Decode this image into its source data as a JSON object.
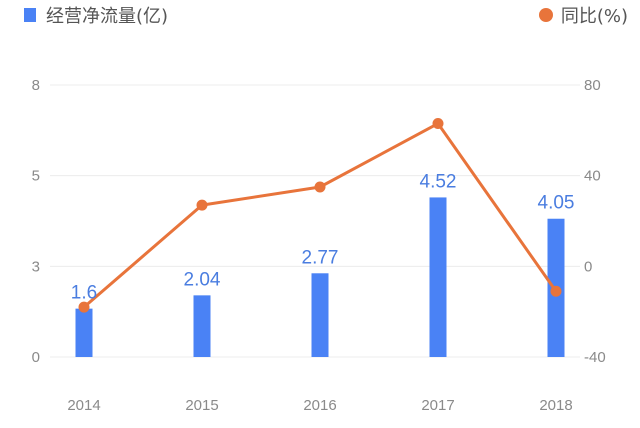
{
  "chart_data": {
    "type": "bar",
    "categories": [
      "2014",
      "2015",
      "2016",
      "2017",
      "2018"
    ],
    "series": [
      {
        "name": "经营净流量(亿)",
        "type": "bar",
        "axis": "left",
        "values": [
          1.6,
          2.04,
          2.77,
          4.52,
          4.05
        ],
        "labels": [
          "1.6",
          "2.04",
          "2.77",
          "4.52",
          "4.05"
        ],
        "color": "#4a82f5"
      },
      {
        "name": "同比(%)",
        "type": "line",
        "axis": "right",
        "values": [
          -18,
          27,
          35,
          63,
          -11
        ],
        "color": "#e8743b"
      }
    ],
    "y_left": {
      "ticks": [
        0,
        3,
        5,
        8
      ],
      "tick_labels": [
        "0",
        "3",
        "5",
        "8"
      ],
      "range": [
        0,
        8
      ]
    },
    "y_right": {
      "ticks": [
        -40,
        0,
        40,
        80
      ],
      "tick_labels": [
        "-40",
        "0",
        "40",
        "80"
      ],
      "range": [
        -40,
        80
      ]
    },
    "grid": true,
    "legend_placement": "top"
  }
}
